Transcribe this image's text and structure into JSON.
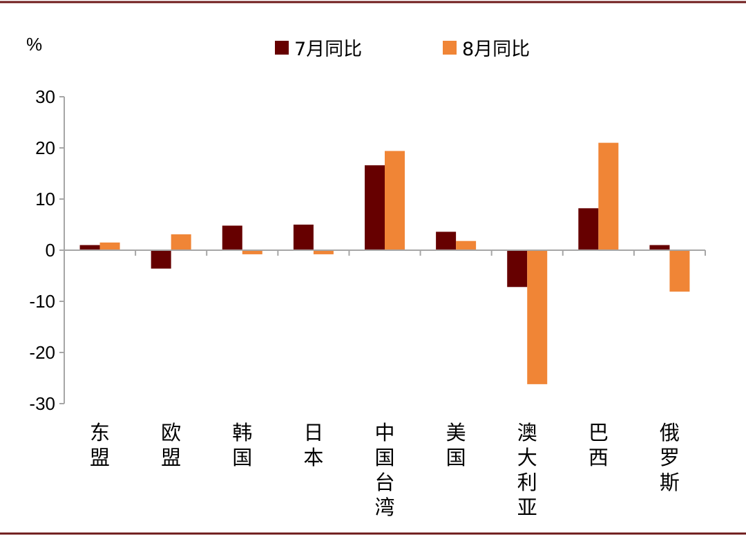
{
  "chart_data": {
    "type": "bar",
    "unit": "%",
    "categories": [
      "东盟",
      "欧盟",
      "韩国",
      "日本",
      "中国台湾",
      "美国",
      "澳大利亚",
      "巴西",
      "俄罗斯"
    ],
    "series": [
      {
        "name": "7月同比",
        "color": "#660000",
        "values": [
          1.0,
          -3.6,
          4.8,
          5.0,
          16.6,
          3.6,
          -7.2,
          8.2,
          1.0
        ]
      },
      {
        "name": "8月同比",
        "color": "#F08536",
        "values": [
          1.5,
          3.1,
          -0.8,
          -0.8,
          19.4,
          1.8,
          -26.2,
          21.0,
          -8.1
        ]
      }
    ],
    "ylim": [
      -30,
      30
    ],
    "yticks": [
      -30,
      -20,
      -10,
      0,
      10,
      20,
      30
    ],
    "ytick_labels": [
      "-30",
      "-20",
      "-10",
      "0",
      "10",
      "20",
      "30"
    ],
    "grid": false,
    "legend_position": "top-center"
  },
  "colors": {
    "border": "#6E1A1A",
    "axis": "#A6A6A6"
  }
}
